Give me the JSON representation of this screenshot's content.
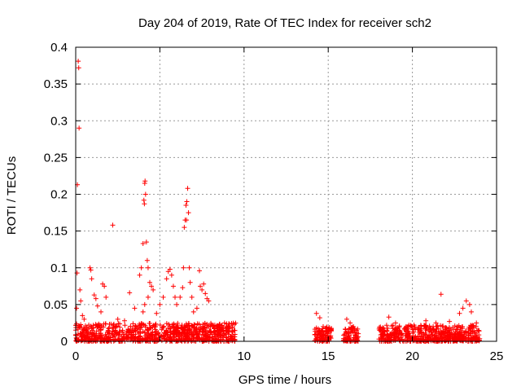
{
  "chart_data": {
    "type": "scatter",
    "title": "Day 204 of 2019, Rate Of TEC Index for receiver sch2",
    "xlabel": "GPS time / hours",
    "ylabel": "ROTI / TECUs",
    "xlim": [
      0,
      25
    ],
    "ylim": [
      0,
      0.4
    ],
    "xticks": [
      0,
      5,
      10,
      15,
      20,
      25
    ],
    "xtick_labels": [
      "0",
      "5",
      "10",
      "15",
      "20",
      "25"
    ],
    "yticks": [
      0,
      0.05,
      0.1,
      0.15,
      0.2,
      0.25,
      0.3,
      0.35,
      0.4
    ],
    "ytick_labels": [
      "0",
      "0.05",
      "0.1",
      "0.15",
      "0.2",
      "0.25",
      "0.3",
      "0.35",
      "0.4"
    ],
    "grid": true,
    "marker": "+",
    "color": "#ff0000",
    "series": [
      {
        "name": "ROTI",
        "points": [
          [
            0.15,
            0.381
          ],
          [
            0.18,
            0.372
          ],
          [
            0.2,
            0.29
          ],
          [
            0.1,
            0.213
          ],
          [
            0.08,
            0.093
          ],
          [
            0.25,
            0.07
          ],
          [
            0.3,
            0.055
          ],
          [
            0.05,
            0.045
          ],
          [
            0.4,
            0.035
          ],
          [
            0.5,
            0.03
          ],
          [
            0.85,
            0.1
          ],
          [
            0.9,
            0.097
          ],
          [
            0.95,
            0.085
          ],
          [
            1.1,
            0.063
          ],
          [
            1.2,
            0.058
          ],
          [
            1.3,
            0.048
          ],
          [
            1.6,
            0.078
          ],
          [
            1.7,
            0.075
          ],
          [
            1.8,
            0.06
          ],
          [
            1.5,
            0.04
          ],
          [
            2.2,
            0.158
          ],
          [
            2.5,
            0.03
          ],
          [
            2.9,
            0.028
          ],
          [
            3.2,
            0.066
          ],
          [
            3.5,
            0.045
          ],
          [
            3.8,
            0.09
          ],
          [
            3.9,
            0.1
          ],
          [
            4.0,
            0.133
          ],
          [
            4.05,
            0.192
          ],
          [
            4.1,
            0.215
          ],
          [
            4.12,
            0.218
          ],
          [
            4.15,
            0.2
          ],
          [
            4.08,
            0.187
          ],
          [
            4.2,
            0.135
          ],
          [
            4.25,
            0.11
          ],
          [
            4.3,
            0.1
          ],
          [
            4.4,
            0.08
          ],
          [
            4.5,
            0.075
          ],
          [
            4.6,
            0.07
          ],
          [
            4.3,
            0.06
          ],
          [
            4.1,
            0.05
          ],
          [
            4.0,
            0.04
          ],
          [
            4.8,
            0.038
          ],
          [
            5.0,
            0.05
          ],
          [
            5.2,
            0.06
          ],
          [
            5.4,
            0.085
          ],
          [
            5.5,
            0.095
          ],
          [
            5.6,
            0.098
          ],
          [
            5.7,
            0.09
          ],
          [
            5.8,
            0.075
          ],
          [
            5.9,
            0.06
          ],
          [
            6.0,
            0.05
          ],
          [
            6.2,
            0.06
          ],
          [
            6.35,
            0.073
          ],
          [
            6.4,
            0.1
          ],
          [
            6.45,
            0.155
          ],
          [
            6.5,
            0.165
          ],
          [
            6.55,
            0.185
          ],
          [
            6.6,
            0.19
          ],
          [
            6.65,
            0.208
          ],
          [
            6.7,
            0.175
          ],
          [
            6.58,
            0.165
          ],
          [
            6.75,
            0.1
          ],
          [
            6.8,
            0.08
          ],
          [
            6.9,
            0.06
          ],
          [
            7.0,
            0.04
          ],
          [
            7.2,
            0.045
          ],
          [
            7.35,
            0.096
          ],
          [
            7.4,
            0.075
          ],
          [
            7.5,
            0.07
          ],
          [
            7.6,
            0.078
          ],
          [
            7.7,
            0.065
          ],
          [
            7.8,
            0.058
          ],
          [
            7.9,
            0.055
          ],
          [
            8.0,
            0.02
          ],
          [
            8.5,
            0.02
          ],
          [
            9.0,
            0.018
          ],
          [
            9.4,
            0.015
          ],
          [
            14.3,
            0.038
          ],
          [
            14.5,
            0.032
          ],
          [
            14.7,
            0.02
          ],
          [
            15.0,
            0.015
          ],
          [
            16.1,
            0.03
          ],
          [
            16.3,
            0.025
          ],
          [
            16.5,
            0.02
          ],
          [
            18.6,
            0.033
          ],
          [
            19.0,
            0.025
          ],
          [
            20.1,
            0.022
          ],
          [
            20.8,
            0.028
          ],
          [
            21.4,
            0.025
          ],
          [
            21.7,
            0.064
          ],
          [
            22.2,
            0.027
          ],
          [
            22.8,
            0.038
          ],
          [
            23.0,
            0.045
          ],
          [
            23.2,
            0.055
          ],
          [
            23.4,
            0.05
          ],
          [
            23.5,
            0.04
          ],
          [
            23.8,
            0.025
          ],
          [
            23.9,
            0.015
          ]
        ]
      }
    ],
    "dense_band": {
      "segments": [
        {
          "x_start": 0.0,
          "x_end": 9.5,
          "y_min": 0.0,
          "y_max": 0.025
        },
        {
          "x_start": 14.2,
          "x_end": 15.2,
          "y_min": 0.0,
          "y_max": 0.02
        },
        {
          "x_start": 15.9,
          "x_end": 16.8,
          "y_min": 0.0,
          "y_max": 0.02
        },
        {
          "x_start": 18.0,
          "x_end": 24.0,
          "y_min": 0.0,
          "y_max": 0.022
        }
      ]
    }
  }
}
